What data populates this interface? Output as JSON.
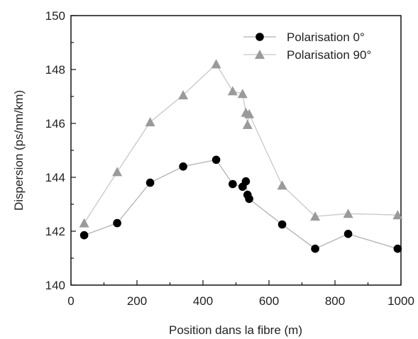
{
  "chart_data": {
    "type": "line",
    "xlabel": "Position dans la fibre (m)",
    "ylabel": "Dispersion (ps/nm/km)",
    "xlim": [
      0,
      1000
    ],
    "ylim": [
      140,
      150
    ],
    "xticks": [
      "0",
      "200",
      "400",
      "600",
      "800",
      "1000"
    ],
    "yticks": [
      "140",
      "142",
      "144",
      "146",
      "148",
      "150"
    ],
    "grid": false,
    "legend_position": "top-right",
    "series": [
      {
        "name": "Polarisation 0°",
        "marker": "circle",
        "color": "#000000",
        "line_color": "#b0b0b0",
        "points": [
          [
            40,
            141.85
          ],
          [
            140,
            142.3
          ],
          [
            240,
            143.8
          ],
          [
            340,
            144.4
          ],
          [
            440,
            144.65
          ],
          [
            490,
            143.75
          ],
          [
            520,
            143.65
          ],
          [
            530,
            143.85
          ],
          [
            535,
            143.35
          ],
          [
            540,
            143.2
          ],
          [
            640,
            142.25
          ],
          [
            740,
            141.35
          ],
          [
            840,
            141.9
          ],
          [
            990,
            141.35
          ]
        ]
      },
      {
        "name": "Polarisation 90°",
        "marker": "triangle",
        "color": "#9a9a9a",
        "line_color": "#c8c8c8",
        "points": [
          [
            40,
            142.3
          ],
          [
            140,
            144.2
          ],
          [
            240,
            146.05
          ],
          [
            340,
            147.05
          ],
          [
            440,
            148.2
          ],
          [
            490,
            147.2
          ],
          [
            520,
            147.1
          ],
          [
            530,
            146.4
          ],
          [
            535,
            145.95
          ],
          [
            540,
            146.35
          ],
          [
            640,
            143.7
          ],
          [
            740,
            142.55
          ],
          [
            840,
            142.65
          ],
          [
            990,
            142.6
          ]
        ]
      }
    ]
  }
}
